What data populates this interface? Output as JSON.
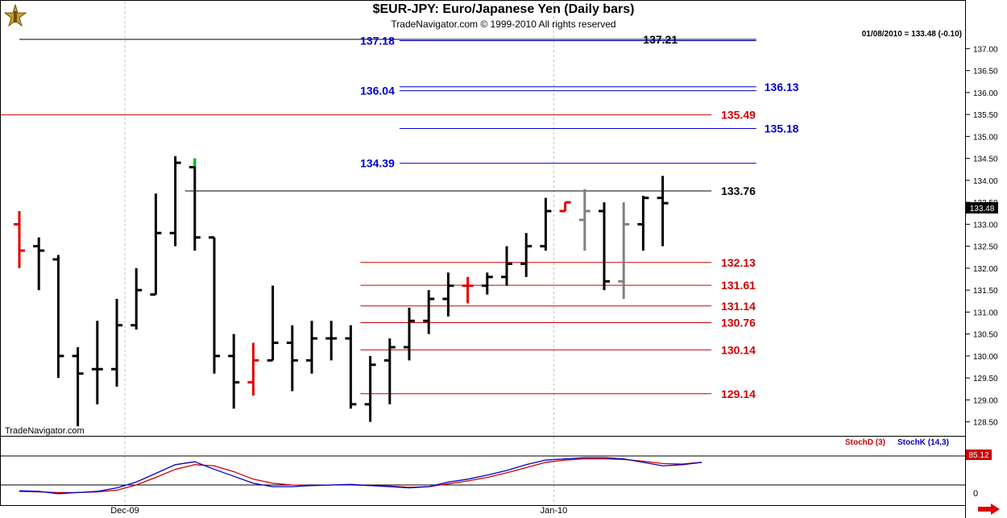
{
  "header": {
    "title": "$EUR-JPY:  Euro/Japanese Yen  (Daily bars)",
    "subtitle": "TradeNavigator.com © 1999-2010 All rights reserved",
    "quote": "01/08/2010 = 133.48 (-0.10)",
    "watermark": "TradeNavigator.com"
  },
  "colors": {
    "bar": "#000000",
    "bar_up_highlight": "#00c000",
    "bar_red": "#e00000",
    "bar_gray": "#808080",
    "blue_level": "#0000cc",
    "red_level": "#cc0000",
    "stoch_d": "#cc0000",
    "stoch_k": "#0000cc",
    "price_box": "#000000"
  },
  "chart_data": {
    "type": "ohlc",
    "ylim": [
      128.2,
      137.3
    ],
    "y_ticks": [
      "137.00",
      "136.50",
      "136.00",
      "135.50",
      "135.00",
      "134.50",
      "134.00",
      "133.50",
      "133.00",
      "132.50",
      "132.00",
      "131.50",
      "131.00",
      "130.50",
      "130.00",
      "129.50",
      "129.00",
      "128.50"
    ],
    "x_labels": [
      {
        "label": "Dec-09",
        "index": 5
      },
      {
        "label": "Jan-10",
        "index": 27
      }
    ],
    "current_price": "133.48",
    "bars": [
      {
        "o": 133.0,
        "h": 133.3,
        "l": 132.0,
        "c": 132.4,
        "color": "red"
      },
      {
        "o": 132.5,
        "h": 132.7,
        "l": 131.5,
        "c": 132.4,
        "color": "black"
      },
      {
        "o": 132.2,
        "h": 132.3,
        "l": 129.5,
        "c": 130.0,
        "color": "black"
      },
      {
        "o": 130.0,
        "h": 130.2,
        "l": 128.4,
        "c": 129.6,
        "color": "black"
      },
      {
        "o": 129.7,
        "h": 130.8,
        "l": 128.9,
        "c": 129.7,
        "color": "black"
      },
      {
        "o": 129.7,
        "h": 131.3,
        "l": 129.3,
        "c": 130.7,
        "color": "black"
      },
      {
        "o": 130.7,
        "h": 132.0,
        "l": 130.6,
        "c": 131.5,
        "color": "black"
      },
      {
        "o": 131.4,
        "h": 133.7,
        "l": 131.4,
        "c": 132.8,
        "color": "black"
      },
      {
        "o": 132.8,
        "h": 134.55,
        "l": 132.5,
        "c": 134.4,
        "color": "black"
      },
      {
        "o": 134.3,
        "h": 134.5,
        "l": 132.4,
        "c": 132.7,
        "color": "black",
        "top_highlight": true
      },
      {
        "o": 132.7,
        "h": 132.7,
        "l": 129.6,
        "c": 130.0,
        "color": "black"
      },
      {
        "o": 130.0,
        "h": 130.5,
        "l": 128.8,
        "c": 129.4,
        "color": "black"
      },
      {
        "o": 129.4,
        "h": 130.3,
        "l": 129.1,
        "c": 129.9,
        "color": "red"
      },
      {
        "o": 129.9,
        "h": 131.6,
        "l": 129.9,
        "c": 130.3,
        "color": "black"
      },
      {
        "o": 130.3,
        "h": 130.7,
        "l": 129.2,
        "c": 129.9,
        "color": "black"
      },
      {
        "o": 129.9,
        "h": 130.8,
        "l": 129.6,
        "c": 130.4,
        "color": "black"
      },
      {
        "o": 130.4,
        "h": 130.8,
        "l": 129.9,
        "c": 130.4,
        "color": "black"
      },
      {
        "o": 130.4,
        "h": 130.7,
        "l": 128.8,
        "c": 128.9,
        "color": "black"
      },
      {
        "o": 128.9,
        "h": 130.0,
        "l": 128.5,
        "c": 129.8,
        "color": "black"
      },
      {
        "o": 129.9,
        "h": 130.4,
        "l": 128.9,
        "c": 130.2,
        "color": "black"
      },
      {
        "o": 130.2,
        "h": 131.1,
        "l": 129.9,
        "c": 130.8,
        "color": "black"
      },
      {
        "o": 130.8,
        "h": 131.5,
        "l": 130.5,
        "c": 131.3,
        "color": "black"
      },
      {
        "o": 131.3,
        "h": 131.9,
        "l": 130.9,
        "c": 131.6,
        "color": "black"
      },
      {
        "o": 131.6,
        "h": 131.8,
        "l": 131.2,
        "c": 131.6,
        "color": "red"
      },
      {
        "o": 131.6,
        "h": 131.9,
        "l": 131.4,
        "c": 131.8,
        "color": "black"
      },
      {
        "o": 131.8,
        "h": 132.5,
        "l": 131.6,
        "c": 132.1,
        "color": "black"
      },
      {
        "o": 132.1,
        "h": 132.8,
        "l": 131.8,
        "c": 132.5,
        "color": "black"
      },
      {
        "o": 132.5,
        "h": 133.6,
        "l": 132.4,
        "c": 133.3,
        "color": "black"
      },
      {
        "o": 133.3,
        "h": 133.5,
        "l": 133.3,
        "c": 133.5,
        "color": "red"
      },
      {
        "o": 133.1,
        "h": 133.8,
        "l": 132.4,
        "c": 133.3,
        "color": "gray"
      },
      {
        "o": 133.3,
        "h": 133.5,
        "l": 131.5,
        "c": 131.7,
        "color": "black"
      },
      {
        "o": 131.7,
        "h": 133.5,
        "l": 131.3,
        "c": 133.0,
        "color": "gray"
      },
      {
        "o": 133.0,
        "h": 133.65,
        "l": 132.4,
        "c": 133.6,
        "color": "black"
      },
      {
        "o": 133.6,
        "h": 134.1,
        "l": 132.5,
        "c": 133.48,
        "color": "black"
      }
    ],
    "levels": [
      {
        "price": 137.21,
        "label": "137.21",
        "color": "black",
        "from": 0,
        "to": 37.8,
        "label_pos": "mid-right"
      },
      {
        "price": 137.18,
        "label": "137.18",
        "color": "blue",
        "from": 19.5,
        "to": 37.8,
        "label_pos": "left"
      },
      {
        "price": 136.13,
        "label": "136.13",
        "color": "blue",
        "from": 19.5,
        "to": 37.8,
        "label_pos": "right"
      },
      {
        "price": 136.04,
        "label": "136.04",
        "color": "blue",
        "from": 19.5,
        "to": 37.8,
        "label_pos": "left"
      },
      {
        "price": 135.49,
        "label": "135.49",
        "color": "red",
        "from": -1,
        "to": 35.5,
        "label_pos": "right-short"
      },
      {
        "price": 135.18,
        "label": "135.18",
        "color": "blue",
        "from": 19.5,
        "to": 37.8,
        "label_pos": "right"
      },
      {
        "price": 134.39,
        "label": "134.39",
        "color": "blue",
        "from": 19.5,
        "to": 37.8,
        "label_pos": "left"
      },
      {
        "price": 133.76,
        "label": "133.76",
        "color": "black",
        "from": 8.5,
        "to": 35.5,
        "label_pos": "right-short"
      },
      {
        "price": 132.13,
        "label": "132.13",
        "color": "red",
        "from": 17.5,
        "to": 35.5,
        "label_pos": "right-short"
      },
      {
        "price": 131.61,
        "label": "131.61",
        "color": "red",
        "from": 17.5,
        "to": 35.5,
        "label_pos": "right-short"
      },
      {
        "price": 131.14,
        "label": "131.14",
        "color": "red",
        "from": 17.5,
        "to": 35.5,
        "label_pos": "right-short"
      },
      {
        "price": 130.76,
        "label": "130.76",
        "color": "red",
        "from": 17.5,
        "to": 35.5,
        "label_pos": "right-short"
      },
      {
        "price": 130.14,
        "label": "130.14",
        "color": "red",
        "from": 17.5,
        "to": 35.5,
        "label_pos": "right-short"
      },
      {
        "price": 129.14,
        "label": "129.14",
        "color": "red",
        "from": 17.5,
        "to": 35.5,
        "label_pos": "right-short"
      }
    ],
    "stochastic": {
      "legend_d": "StochD (3)",
      "legend_k": "StochK (14,3)",
      "value_label": "85.12",
      "axis_label": "0",
      "k": [
        15,
        14,
        10,
        12,
        14,
        20,
        30,
        45,
        60,
        65,
        52,
        40,
        28,
        22,
        22,
        24,
        25,
        26,
        24,
        22,
        20,
        22,
        30,
        35,
        42,
        50,
        60,
        68,
        70,
        72,
        72,
        70,
        64,
        58,
        60,
        64
      ],
      "d": [
        14,
        13,
        12,
        12,
        13,
        16,
        25,
        38,
        52,
        60,
        58,
        48,
        35,
        28,
        25,
        24,
        25,
        25,
        24,
        23,
        21,
        22,
        27,
        32,
        38,
        46,
        55,
        64,
        68,
        70,
        70,
        69,
        66,
        62,
        61,
        64
      ]
    }
  }
}
